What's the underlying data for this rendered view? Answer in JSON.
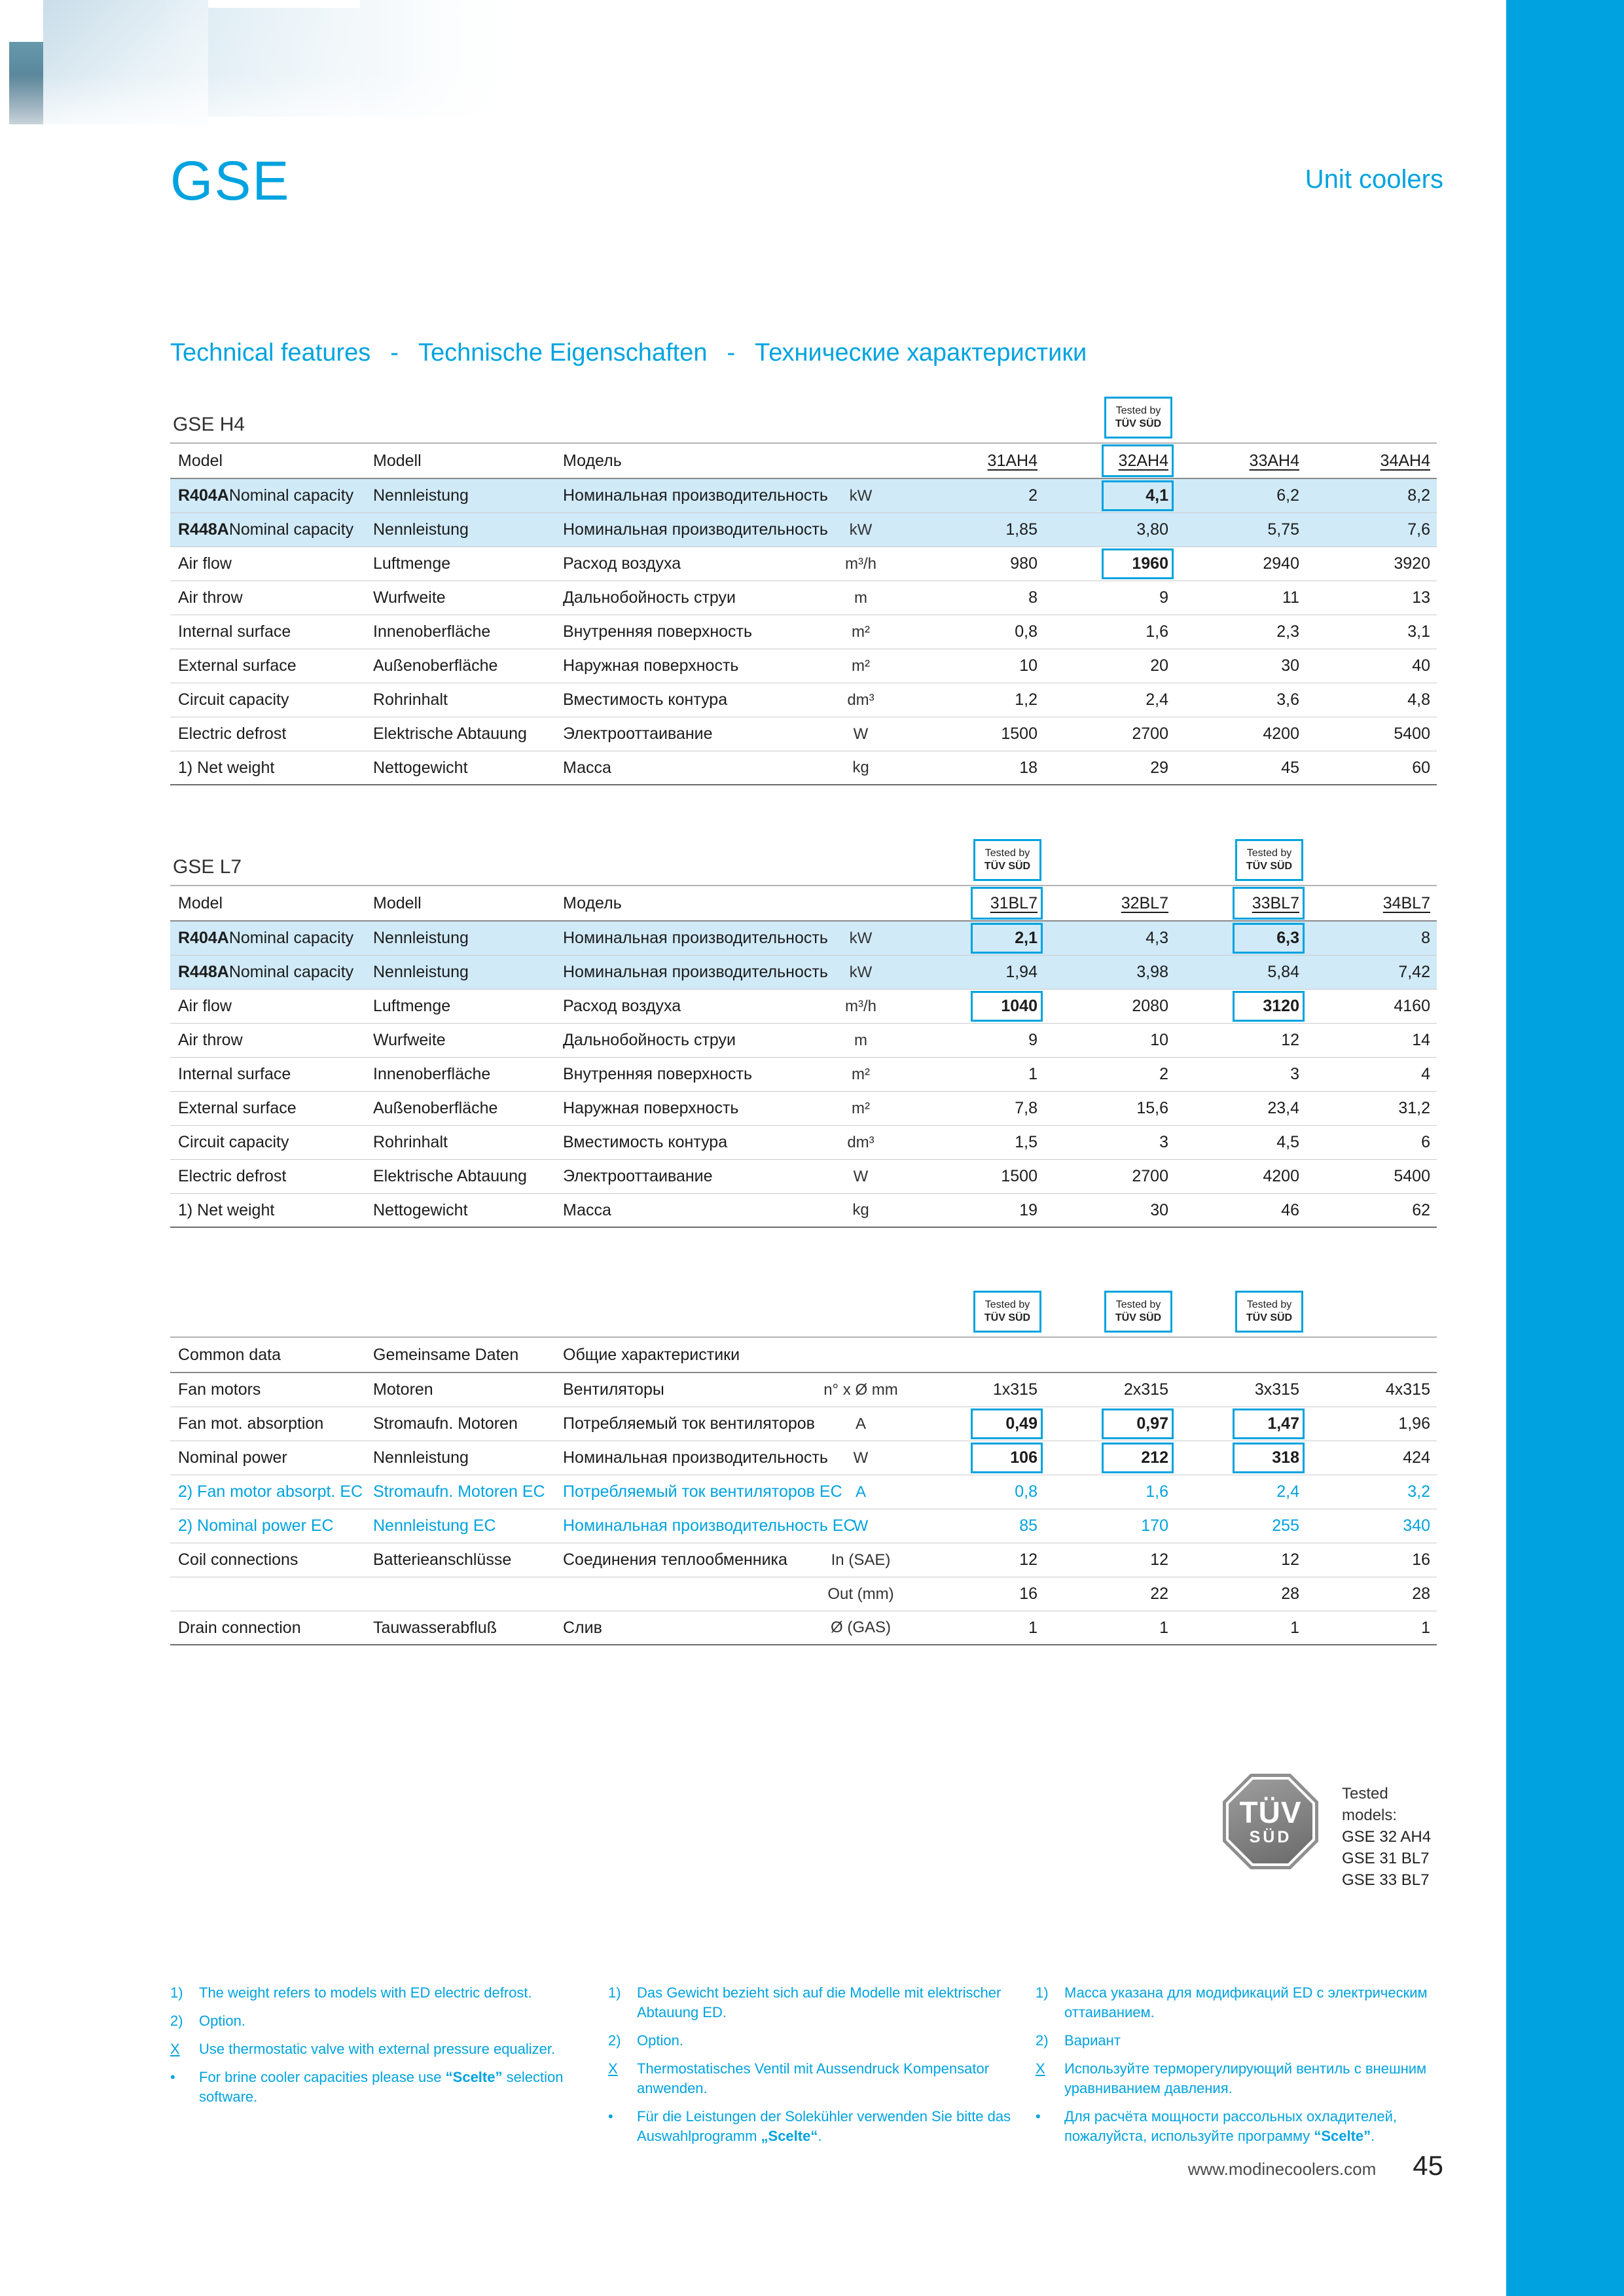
{
  "colors": {
    "accent": "#00A3DF",
    "row_highlight": "#D0EAF8"
  },
  "header": {
    "title": "GSE",
    "category": "Unit coolers"
  },
  "section": {
    "parts": [
      "Technical features",
      "Technische Eigenschaften",
      "Технические характеристики"
    ],
    "separator": "-"
  },
  "tested_badge": {
    "line1": "Tested by",
    "line2": "TÜV SÜD"
  },
  "tables": [
    {
      "title": "GSE H4",
      "head": {
        "labels": [
          "Model",
          "Modell",
          "Модель"
        ],
        "unit": "",
        "models": [
          "31AH4",
          "32AH4",
          "33AH4",
          "34AH4"
        ]
      },
      "tested_columns": [
        1
      ],
      "rows": [
        {
          "l1b": "R404A",
          "l1": "Nominal capacity",
          "l2": "Nennleistung",
          "l3": "Номинальная производительность",
          "u": "kW",
          "v": [
            "2",
            "4,1",
            "6,2",
            "8,2"
          ],
          "highlight": true,
          "boxed": [
            1
          ]
        },
        {
          "l1b": "R448A",
          "l1": "Nominal capacity",
          "l2": "Nennleistung",
          "l3": "Номинальная производительность",
          "u": "kW",
          "v": [
            "1,85",
            "3,80",
            "5,75",
            "7,6"
          ],
          "highlight": true
        },
        {
          "l1": "Air flow",
          "l2": "Luftmenge",
          "l3": "Расход воздуха",
          "u": "m³/h",
          "v": [
            "980",
            "1960",
            "2940",
            "3920"
          ],
          "boxed": [
            1
          ]
        },
        {
          "l1": "Air throw",
          "l2": "Wurfweite",
          "l3": "Дальнобойность струи",
          "u": "m",
          "v": [
            "8",
            "9",
            "11",
            "13"
          ]
        },
        {
          "l1": "Internal surface",
          "l2": "Innenoberfläche",
          "l3": "Внутренняя поверхность",
          "u": "m²",
          "v": [
            "0,8",
            "1,6",
            "2,3",
            "3,1"
          ]
        },
        {
          "l1": "External surface",
          "l2": "Außenoberfläche",
          "l3": "Наружная поверхность",
          "u": "m²",
          "v": [
            "10",
            "20",
            "30",
            "40"
          ]
        },
        {
          "l1": "Circuit capacity",
          "l2": "Rohrinhalt",
          "l3": "Вместимость контура",
          "u": "dm³",
          "v": [
            "1,2",
            "2,4",
            "3,6",
            "4,8"
          ]
        },
        {
          "l1": "Electric defrost",
          "l2": "Elektrische Abtauung",
          "l3": "Электрооттаивание",
          "u": "W",
          "v": [
            "1500",
            "2700",
            "4200",
            "5400"
          ]
        },
        {
          "l1": "1) Net weight",
          "l2": "Nettogewicht",
          "l3": "Масса",
          "u": "kg",
          "v": [
            "18",
            "29",
            "45",
            "60"
          ]
        }
      ]
    },
    {
      "title": "GSE L7",
      "head": {
        "labels": [
          "Model",
          "Modell",
          "Модель"
        ],
        "unit": "",
        "models": [
          "31BL7",
          "32BL7",
          "33BL7",
          "34BL7"
        ]
      },
      "tested_columns": [
        0,
        2
      ],
      "rows": [
        {
          "l1b": "R404A",
          "l1": "Nominal capacity",
          "l2": "Nennleistung",
          "l3": "Номинальная производительность",
          "u": "kW",
          "v": [
            "2,1",
            "4,3",
            "6,3",
            "8"
          ],
          "highlight": true,
          "boxed": [
            0,
            2
          ]
        },
        {
          "l1b": "R448A",
          "l1": "Nominal capacity",
          "l2": "Nennleistung",
          "l3": "Номинальная производительность",
          "u": "kW",
          "v": [
            "1,94",
            "3,98",
            "5,84",
            "7,42"
          ],
          "highlight": true
        },
        {
          "l1": "Air flow",
          "l2": "Luftmenge",
          "l3": "Расход воздуха",
          "u": "m³/h",
          "v": [
            "1040",
            "2080",
            "3120",
            "4160"
          ],
          "boxed": [
            0,
            2
          ]
        },
        {
          "l1": "Air throw",
          "l2": "Wurfweite",
          "l3": "Дальнобойность струи",
          "u": "m",
          "v": [
            "9",
            "10",
            "12",
            "14"
          ]
        },
        {
          "l1": "Internal surface",
          "l2": "Innenoberfläche",
          "l3": "Внутренняя поверхность",
          "u": "m²",
          "v": [
            "1",
            "2",
            "3",
            "4"
          ]
        },
        {
          "l1": "External surface",
          "l2": "Außenoberfläche",
          "l3": "Наружная поверхность",
          "u": "m²",
          "v": [
            "7,8",
            "15,6",
            "23,4",
            "31,2"
          ]
        },
        {
          "l1": "Circuit capacity",
          "l2": "Rohrinhalt",
          "l3": "Вместимость контура",
          "u": "dm³",
          "v": [
            "1,5",
            "3",
            "4,5",
            "6"
          ]
        },
        {
          "l1": "Electric defrost",
          "l2": "Elektrische Abtauung",
          "l3": "Электрооттаивание",
          "u": "W",
          "v": [
            "1500",
            "2700",
            "4200",
            "5400"
          ]
        },
        {
          "l1": "1) Net weight",
          "l2": "Nettogewicht",
          "l3": "Масса",
          "u": "kg",
          "v": [
            "19",
            "30",
            "46",
            "62"
          ]
        }
      ]
    },
    {
      "title": "",
      "head": {
        "labels": [
          "Common data",
          "Gemeinsame Daten",
          "Общие характеристики"
        ],
        "unit": "",
        "models": [
          "",
          "",
          "",
          ""
        ]
      },
      "tested_columns": [
        0,
        1,
        2
      ],
      "rows": [
        {
          "l1": "Fan motors",
          "l2": "Motoren",
          "l3": "Вентиляторы",
          "u": "n° x Ø mm",
          "v": [
            "1x315",
            "2x315",
            "3x315",
            "4x315"
          ]
        },
        {
          "l1": "Fan mot. absorption",
          "l2": "Stromaufn. Motoren",
          "l3": "Потребляемый ток вентиляторов",
          "u": "A",
          "v": [
            "0,49",
            "0,97",
            "1,47",
            "1,96"
          ],
          "boxed": [
            0,
            1,
            2
          ]
        },
        {
          "l1": "Nominal power",
          "l2": "Nennleistung",
          "l3": "Номинальная производительность",
          "u": "W",
          "v": [
            "106",
            "212",
            "318",
            "424"
          ],
          "boxed": [
            0,
            1,
            2
          ]
        },
        {
          "l1": "2) Fan motor absorpt. EC",
          "l2": "Stromaufn. Motoren EC",
          "l3": "Потребляемый ток вентиляторов EC",
          "u": "A",
          "v": [
            "0,8",
            "1,6",
            "2,4",
            "3,2"
          ],
          "cyan": true
        },
        {
          "l1": "2) Nominal power EC",
          "l2": "Nennleistung EC",
          "l3": "Номинальная производительность EC",
          "u": "W",
          "v": [
            "85",
            "170",
            "255",
            "340"
          ],
          "cyan": true
        },
        {
          "l1": "Coil connections",
          "l2": "Batterieanschlüsse",
          "l3": "Соединения теплообменника",
          "u": "In (SAE)",
          "v": [
            "12",
            "12",
            "12",
            "16"
          ]
        },
        {
          "l1": "",
          "l2": "",
          "l3": "",
          "u": "Out (mm)",
          "v": [
            "16",
            "22",
            "28",
            "28"
          ]
        },
        {
          "l1": "Drain connection",
          "l2": "Tauwasserabfluß",
          "l3": "Слив",
          "u": "Ø (GAS)",
          "v": [
            "1",
            "1",
            "1",
            "1"
          ]
        }
      ]
    }
  ],
  "tuv": {
    "logo_line1": "TÜV",
    "logo_line2": "SÜD",
    "tested_models_heading": "Tested models:",
    "tested_models": [
      "GSE 32 AH4",
      "GSE 31 BL7",
      "GSE 33 BL7"
    ]
  },
  "footnotes": {
    "columns": [
      {
        "lang": "en",
        "items": [
          {
            "marker": "1)",
            "segments": [
              {
                "t": "The weight refers to models with ED electric defrost."
              }
            ]
          },
          {
            "marker": "2)",
            "segments": [
              {
                "t": "Option."
              }
            ]
          },
          {
            "marker": "X",
            "underline_marker": true,
            "segments": [
              {
                "t": "Use thermostatic valve with external pressure equalizer."
              }
            ]
          },
          {
            "marker": "•",
            "segments": [
              {
                "t": "For brine cooler capacities please use "
              },
              {
                "t": "“Scelte”",
                "b": true
              },
              {
                "t": " selection software."
              }
            ]
          }
        ]
      },
      {
        "lang": "de",
        "items": [
          {
            "marker": "1)",
            "segments": [
              {
                "t": "Das Gewicht bezieht sich auf die Modelle mit elektrischer Abtauung ED."
              }
            ]
          },
          {
            "marker": "2)",
            "segments": [
              {
                "t": "Option."
              }
            ]
          },
          {
            "marker": "X",
            "underline_marker": true,
            "segments": [
              {
                "t": "Thermostatisches Ventil mit Aussendruck Kompensator anwenden."
              }
            ]
          },
          {
            "marker": "•",
            "segments": [
              {
                "t": "Für die Leistungen der Solekühler verwenden Sie bitte das Auswahlprogramm "
              },
              {
                "t": "„Scelte“",
                "b": true
              },
              {
                "t": "."
              }
            ]
          }
        ]
      },
      {
        "lang": "ru",
        "items": [
          {
            "marker": "1)",
            "segments": [
              {
                "t": "Масса указана для модификаций ED с электрическим оттаиванием."
              }
            ]
          },
          {
            "marker": "2)",
            "segments": [
              {
                "t": "Вариант"
              }
            ]
          },
          {
            "marker": "X",
            "underline_marker": true,
            "segments": [
              {
                "t": "Используйте терморегулирующий вентиль с внешним уравниванием давления."
              }
            ]
          },
          {
            "marker": "•",
            "segments": [
              {
                "t": "Для расчёта мощности рассольных охладителей, пожалуйста, используйте программу "
              },
              {
                "t": "“Scelte”",
                "b": true
              },
              {
                "t": "."
              }
            ]
          }
        ]
      }
    ]
  },
  "footer": {
    "website": "www.modinecoolers.com",
    "page_number": "45"
  }
}
